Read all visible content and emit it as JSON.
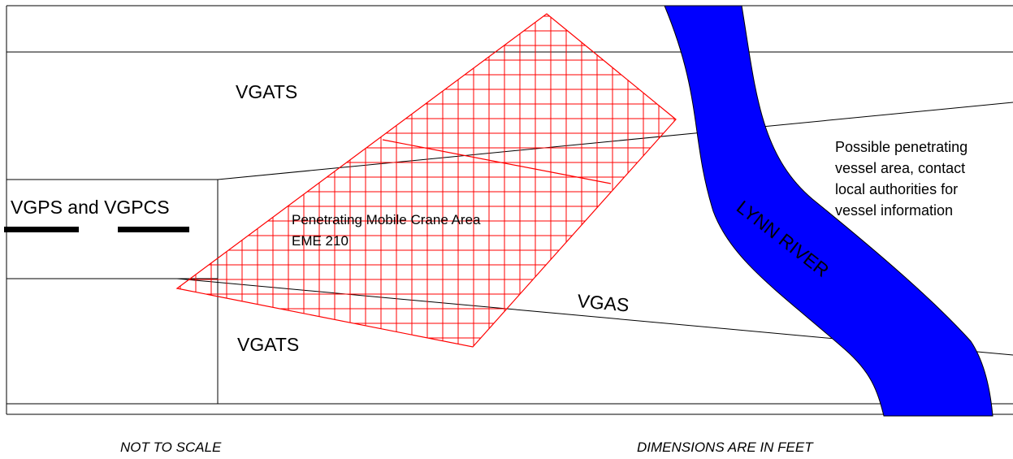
{
  "labels": {
    "vgats_top": "VGATS",
    "vgats_bottom": "VGATS",
    "vgps_vgpcs": "VGPS and VGPCS",
    "crane_area_line1": "Penetrating Mobile Crane Area",
    "crane_area_line2": "EME 210",
    "vgas": "VGAS",
    "river": "LYNN RIVER",
    "vessel_note_line1": "Possible penetrating",
    "vessel_note_line2": "vessel area, contact",
    "vessel_note_line3": "local authorities for",
    "vessel_note_line4": "vessel information"
  },
  "footer": {
    "scale_note": "NOT TO SCALE",
    "units_note": "DIMENSIONS ARE IN FEET"
  },
  "colors": {
    "river": "#0000ff",
    "crane_area": "#ff0000",
    "lines": "#000000"
  }
}
